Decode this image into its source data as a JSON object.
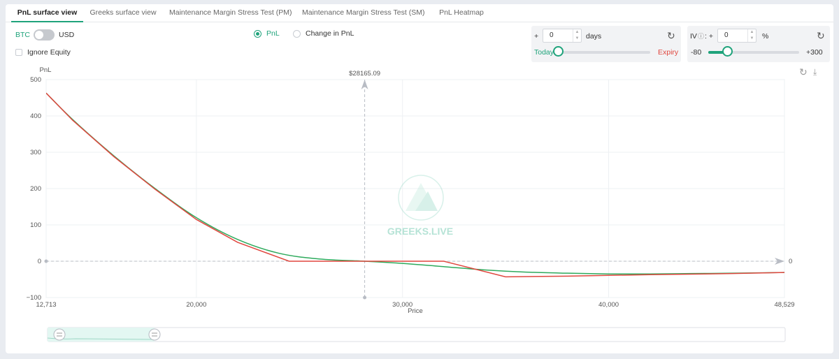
{
  "tabs": [
    {
      "label": "PnL surface view",
      "active": true
    },
    {
      "label": "Greeks surface view",
      "active": false
    },
    {
      "label": "Maintenance Margin Stress Test (PM)",
      "active": false
    },
    {
      "label": "Maintenance Margin Stress Test (SM)",
      "active": false
    },
    {
      "label": "PnL Heatmap",
      "active": false
    }
  ],
  "currency": {
    "left": "BTC",
    "right": "USD",
    "selected": "BTC"
  },
  "ignore_equity": {
    "label": "Ignore Equity",
    "checked": false
  },
  "mode": {
    "options": [
      "PnL",
      "Change in PnL"
    ],
    "selected": "PnL"
  },
  "days": {
    "plus": "+",
    "value": "0",
    "unit": "days",
    "slider_left": "Today",
    "slider_right": "Expiry",
    "slider_fraction": 0.0
  },
  "iv": {
    "label": "IV",
    "help_icon": "question-icon",
    "colon_plus": ": +",
    "value": "0",
    "unit": "%",
    "min_label": "-80",
    "max_label": "+300",
    "slider_fraction": 0.21
  },
  "colors": {
    "accent": "#1fa37b",
    "today_label": "#1fa37b",
    "expiry_label": "#e0473f",
    "today_line": "#2eaa5c",
    "expiry_line": "#e0473f"
  },
  "watermark": "GREEKS.LIVE",
  "toolbox": [
    "refresh-icon",
    "download-icon"
  ],
  "chart_data": {
    "type": "line",
    "title": "",
    "xlabel": "Price",
    "ylabel": "PnL",
    "xlim": [
      12713,
      48529
    ],
    "ylim": [
      -100,
      500
    ],
    "x_tick_labels": [
      "12,713",
      "20,000",
      "30,000",
      "40,000",
      "48,529"
    ],
    "x_ticks": [
      12713,
      20000,
      30000,
      40000,
      48529
    ],
    "y_ticks": [
      -100,
      0,
      100,
      200,
      300,
      400,
      500
    ],
    "y_tick_labels": [
      "−100",
      "0",
      "100",
      "200",
      "300",
      "400",
      "500"
    ],
    "spot": {
      "label": "$28165.09",
      "x": 28165.09
    },
    "zero_label": "0",
    "series": [
      {
        "key": "today",
        "x": [
          12713,
          14000,
          16000,
          18000,
          20000,
          22000,
          24000,
          26000,
          28165,
          30000,
          32000,
          34000,
          36000,
          38000,
          40000,
          42000,
          44000,
          46000,
          48529
        ],
        "y": [
          463,
          390,
          290,
          200,
          120,
          60,
          22,
          6,
          0,
          -6,
          -15,
          -24,
          -30,
          -33,
          -35,
          -35,
          -34,
          -33,
          -31
        ]
      },
      {
        "key": "expiry",
        "x": [
          12713,
          14000,
          16000,
          18000,
          20000,
          22000,
          24500,
          28165,
          32000,
          35000,
          38000,
          42000,
          46000,
          48529
        ],
        "y": [
          463,
          388,
          288,
          198,
          115,
          52,
          0,
          0,
          0,
          -43,
          -41,
          -37,
          -34,
          -31
        ]
      }
    ]
  }
}
